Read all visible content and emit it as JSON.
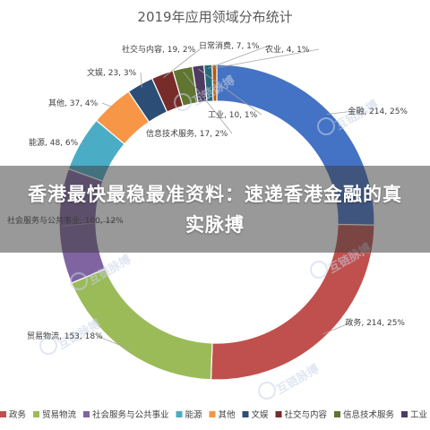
{
  "chart_data": {
    "type": "donut",
    "title": "2019年应用领域分布统计",
    "slices": [
      {
        "name": "金融",
        "value": 214,
        "percent": "25%",
        "color": "#4472c4"
      },
      {
        "name": "政务",
        "value": 214,
        "percent": "25%",
        "color": "#c0504d"
      },
      {
        "name": "贸易物流",
        "value": 153,
        "percent": "18%",
        "color": "#9bbb59"
      },
      {
        "name": "社会服务与公共事业",
        "value": 100,
        "percent": "12%",
        "color": "#8064a2"
      },
      {
        "name": "能源",
        "value": 48,
        "percent": "6%",
        "color": "#4bacc6"
      },
      {
        "name": "其他",
        "value": 37,
        "percent": "4%",
        "color": "#f79646"
      },
      {
        "name": "文娱",
        "value": 23,
        "percent": "3%",
        "color": "#2c4d75"
      },
      {
        "name": "社交与内容",
        "value": 19,
        "percent": "2%",
        "color": "#772c2a"
      },
      {
        "name": "信息技术服务",
        "value": 17,
        "percent": "2%",
        "color": "#5f7530"
      },
      {
        "name": "工业",
        "value": 10,
        "percent": "1%",
        "color": "#4d3b62"
      },
      {
        "name": "日常消费",
        "value": 7,
        "percent": "1%",
        "color": "#276a7c"
      },
      {
        "name": "农业",
        "value": 4,
        "percent": "1%",
        "color": "#b65708"
      }
    ],
    "legend_position": "bottom"
  },
  "banner": {
    "text": "香港最快最稳最准资料：速递香港金融的真实脉搏"
  },
  "watermark": {
    "text": "互链脉搏"
  }
}
